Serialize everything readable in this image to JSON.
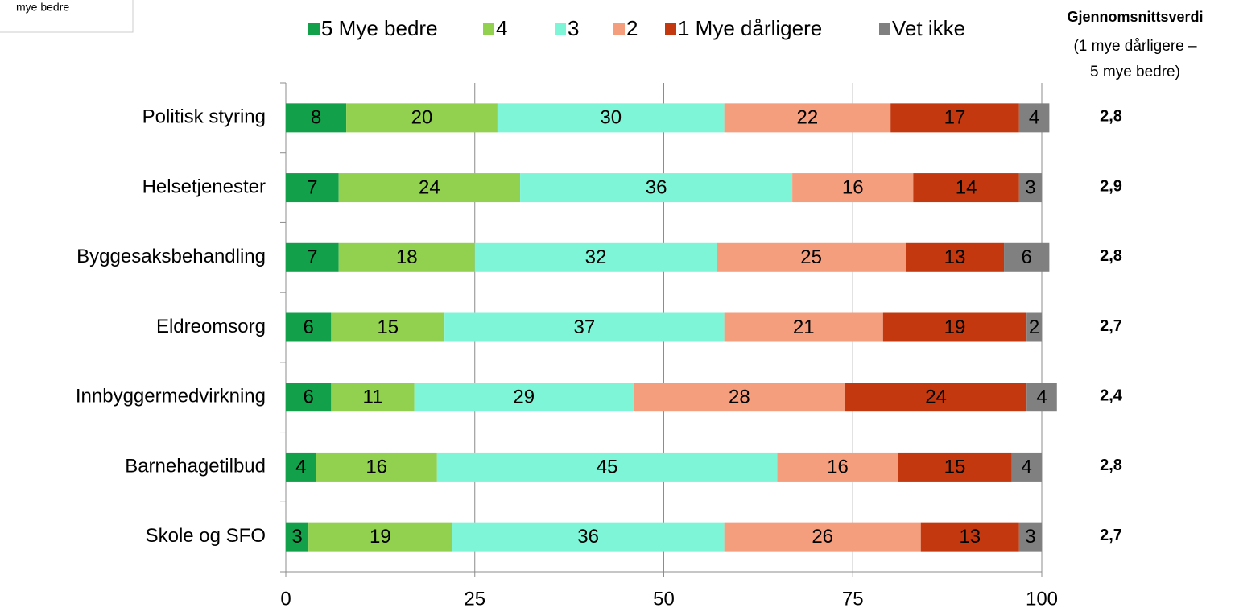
{
  "note": "mye bedre",
  "chart_data": {
    "type": "stacked-barh",
    "categories": [
      "Politisk styring",
      "Helsetjenester",
      "Byggesaksbehandling",
      "Eldreomsorg",
      "Innbyggermedvirkning",
      "Barnehagetilbud",
      "Skole og SFO"
    ],
    "series": [
      {
        "name": "5 Mye bedre",
        "color": "#13a04a",
        "values": [
          8,
          7,
          7,
          6,
          6,
          4,
          3
        ]
      },
      {
        "name": "4",
        "color": "#92d050",
        "values": [
          20,
          24,
          18,
          15,
          11,
          16,
          19
        ]
      },
      {
        "name": "3",
        "color": "#7ff5d8",
        "values": [
          30,
          36,
          32,
          37,
          29,
          45,
          36
        ]
      },
      {
        "name": "2",
        "color": "#f59e7e",
        "values": [
          22,
          16,
          25,
          21,
          28,
          16,
          26
        ]
      },
      {
        "name": "1 Mye dårligere",
        "color": "#c3380e",
        "values": [
          17,
          14,
          13,
          19,
          24,
          15,
          13
        ]
      },
      {
        "name": "Vet ikke",
        "color": "#808080",
        "values": [
          4,
          3,
          6,
          2,
          4,
          4,
          3
        ]
      }
    ],
    "xlim": [
      0,
      100
    ],
    "xticks": [
      0,
      25,
      50,
      75,
      100
    ],
    "grid": true,
    "side_title": "Gjennomsnittsverdi",
    "side_subtitle": [
      "(1 mye dårligere –",
      "5 mye bedre)"
    ],
    "averages": [
      2.8,
      2.9,
      2.8,
      2.7,
      2.4,
      2.8,
      2.7
    ],
    "average_labels": [
      "2,8",
      "2,9",
      "2,8",
      "2,7",
      "2,4",
      "2,8",
      "2,7"
    ]
  }
}
